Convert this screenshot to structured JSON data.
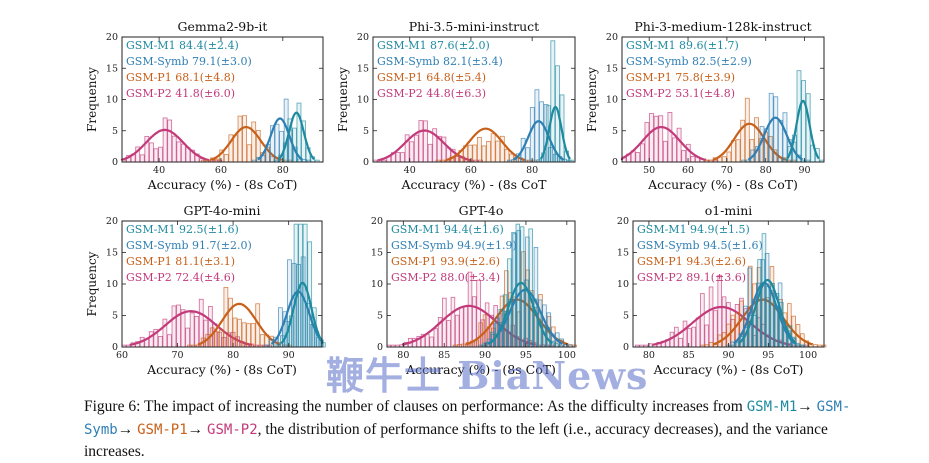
{
  "figure_caption": {
    "lead": "Figure 6: The impact of increasing the number of clauses on performance: As the difficulty increases from ",
    "d1": "GSM-M1",
    "d2": "GSM-Symb",
    "d3": "GSM-P1",
    "d4": "GSM-P2",
    "arrow": "→",
    "tail": ", the distribution of performance shifts to the left (i.e., accuracy decreases), and the variance increases."
  },
  "watermark": "鞭牛士 BiaNews",
  "colors": {
    "GSM-M1": "#1d8aa0",
    "GSM-Symb": "#2f7fb5",
    "GSM-P1": "#c8601a",
    "GSM-P2": "#c33a7a"
  },
  "chart_data": [
    {
      "type": "histogram",
      "title": "Gemma2-9b-it",
      "xlabel": "Accuracy (%) - (8s CoT)",
      "ylabel": "Frequency",
      "xlim": [
        28,
        93
      ],
      "ylim": [
        0,
        20
      ],
      "xticks": [
        40,
        60,
        80
      ],
      "yticks": [
        0,
        5,
        10,
        15,
        20
      ],
      "legend": [
        "GSM-M1 84.4(±2.4)",
        "GSM-Symb 79.1(±3.0)",
        "GSM-P1 68.1(±4.8)",
        "GSM-P2 41.8(±6.0)"
      ],
      "series": [
        {
          "name": "GSM-M1",
          "mean": 84.4,
          "std": 2.4
        },
        {
          "name": "GSM-Symb",
          "mean": 79.1,
          "std": 3.0
        },
        {
          "name": "GSM-P1",
          "mean": 68.1,
          "std": 4.8
        },
        {
          "name": "GSM-P2",
          "mean": 41.8,
          "std": 6.0
        }
      ]
    },
    {
      "type": "histogram",
      "title": "Phi-3.5-mini-instruct",
      "xlabel": "Accuracy (%) - (8s CoT",
      "ylabel": "Frequency",
      "xlim": [
        28,
        94
      ],
      "ylim": [
        0,
        20
      ],
      "xticks": [
        40,
        60,
        80
      ],
      "yticks": [
        0,
        5,
        10,
        15,
        20
      ],
      "legend": [
        "GSM-M1 87.6(±2.0)",
        "GSM-Symb 82.1(±3.4)",
        "GSM-P1 64.8(±5.4)",
        "GSM-P2 44.8(±6.3)"
      ],
      "series": [
        {
          "name": "GSM-M1",
          "mean": 87.6,
          "std": 2.0
        },
        {
          "name": "GSM-Symb",
          "mean": 82.1,
          "std": 3.4
        },
        {
          "name": "GSM-P1",
          "mean": 64.8,
          "std": 5.4
        },
        {
          "name": "GSM-P2",
          "mean": 44.8,
          "std": 6.3
        }
      ]
    },
    {
      "type": "histogram",
      "title": "Phi-3-medium-128k-instruct",
      "xlabel": "Accuracy (%) - (8s CoT)",
      "ylabel": "Frequency",
      "xlim": [
        43,
        95
      ],
      "ylim": [
        0,
        20
      ],
      "xticks": [
        50,
        60,
        70,
        80,
        90
      ],
      "yticks": [
        0,
        5,
        10,
        15,
        20
      ],
      "legend": [
        "GSM-M1 89.6(±1.7)",
        "GSM-Symb 82.5(±2.9)",
        "GSM-P1 75.8(±3.9)",
        "GSM-P2 53.1(±4.8)"
      ],
      "series": [
        {
          "name": "GSM-M1",
          "mean": 89.6,
          "std": 1.7
        },
        {
          "name": "GSM-Symb",
          "mean": 82.5,
          "std": 2.9
        },
        {
          "name": "GSM-P1",
          "mean": 75.8,
          "std": 3.9
        },
        {
          "name": "GSM-P2",
          "mean": 53.1,
          "std": 4.8
        }
      ]
    },
    {
      "type": "histogram",
      "title": "GPT-4o-mini",
      "xlabel": "Accuracy (%) - (8s CoT)",
      "ylabel": "Frequency",
      "xlim": [
        60,
        96
      ],
      "ylim": [
        0,
        20
      ],
      "xticks": [
        60,
        70,
        80,
        90
      ],
      "yticks": [
        0,
        5,
        10,
        15,
        20
      ],
      "legend": [
        "GSM-M1 92.5(±1.6)",
        "GSM-Symb 91.7(±2.0)",
        "GSM-P1 81.1(±3.1)",
        "GSM-P2 72.4(±4.6)"
      ],
      "series": [
        {
          "name": "GSM-M1",
          "mean": 92.5,
          "std": 1.6
        },
        {
          "name": "GSM-Symb",
          "mean": 91.7,
          "std": 2.0
        },
        {
          "name": "GSM-P1",
          "mean": 81.1,
          "std": 3.1
        },
        {
          "name": "GSM-P2",
          "mean": 72.4,
          "std": 4.6
        }
      ]
    },
    {
      "type": "histogram",
      "title": "GPT-4o",
      "xlabel": "Accuracy (%) - (8s CoT)",
      "ylabel": "",
      "xlim": [
        78,
        101
      ],
      "ylim": [
        0,
        20
      ],
      "xticks": [
        80,
        85,
        90,
        95,
        100
      ],
      "yticks": [
        0,
        5,
        10,
        15,
        20
      ],
      "legend": [
        "GSM-M1 94.4(±1.6)",
        "GSM-Symb 94.9(±1.9)",
        "GSM-P1 93.9(±2.6)",
        "GSM-P2 88.0(±3.4)"
      ],
      "series": [
        {
          "name": "GSM-M1",
          "mean": 94.4,
          "std": 1.6
        },
        {
          "name": "GSM-Symb",
          "mean": 94.9,
          "std": 1.9
        },
        {
          "name": "GSM-P1",
          "mean": 93.9,
          "std": 2.6
        },
        {
          "name": "GSM-P2",
          "mean": 88.0,
          "std": 3.4
        }
      ]
    },
    {
      "type": "histogram",
      "title": "o1-mini",
      "xlabel": "Accuracy (%) - (8s CoT)",
      "ylabel": "",
      "xlim": [
        78,
        102
      ],
      "ylim": [
        0,
        20
      ],
      "xticks": [
        80,
        85,
        90,
        95,
        100
      ],
      "yticks": [
        0,
        5,
        10,
        15,
        20
      ],
      "legend": [
        "GSM-M1 94.9(±1.5)",
        "GSM-Symb 94.5(±1.6)",
        "GSM-P1 94.3(±2.6)",
        "GSM-P2 89.1(±3.6)"
      ],
      "series": [
        {
          "name": "GSM-M1",
          "mean": 94.9,
          "std": 1.5
        },
        {
          "name": "GSM-Symb",
          "mean": 94.5,
          "std": 1.6
        },
        {
          "name": "GSM-P1",
          "mean": 94.3,
          "std": 2.6
        },
        {
          "name": "GSM-P2",
          "mean": 89.1,
          "std": 3.6
        }
      ]
    }
  ]
}
